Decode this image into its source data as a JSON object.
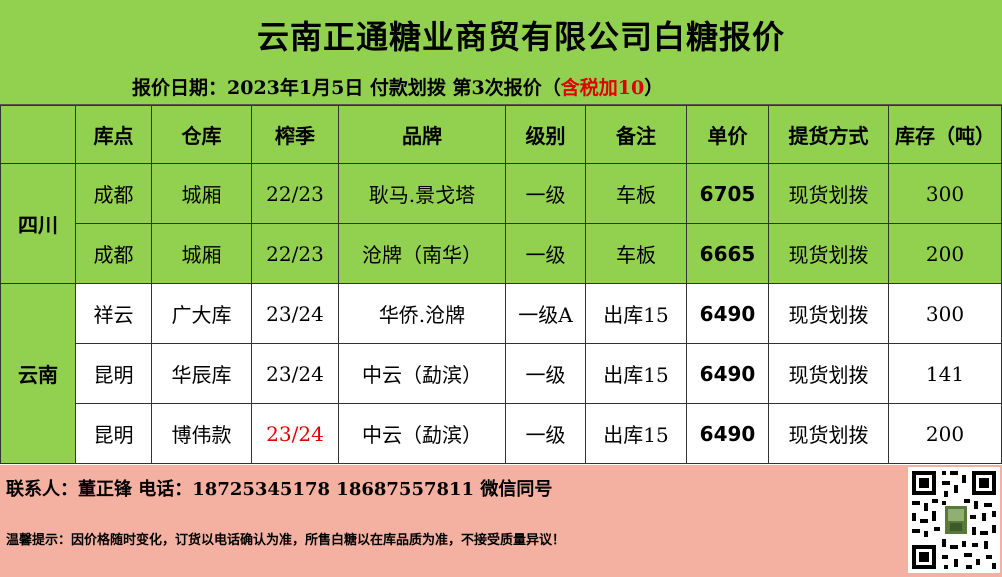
{
  "title": "云南正通糖业商贸有限公司白糖报价",
  "quote_line": {
    "prefix": "报价日期：2023年1月5日 付款划拨 第3次报价（",
    "red": "含税加10",
    "suffix": "）"
  },
  "table": {
    "headers": [
      "库点",
      "仓库",
      "榨季",
      "品牌",
      "级别",
      "备注",
      "单价",
      "提货方式",
      "库存（吨）"
    ],
    "groups": [
      {
        "province": "四川"
      },
      {
        "province": "云南"
      }
    ],
    "rows": [
      {
        "depot": "成都",
        "warehouse": "城厢",
        "season": "22/23",
        "brand": "耿马.景戈塔",
        "grade": "一级",
        "note": "车板",
        "price": "6705",
        "delivery": "现货划拨",
        "stock": "300"
      },
      {
        "depot": "成都",
        "warehouse": "城厢",
        "season": "22/23",
        "brand": "沧牌（南华）",
        "grade": "一级",
        "note": "车板",
        "price": "6665",
        "delivery": "现货划拨",
        "stock": "200"
      },
      {
        "depot": "祥云",
        "warehouse": "广大库",
        "season": "23/24",
        "brand": "华侨.沧牌",
        "grade": "一级A",
        "note": "出库15",
        "price": "6490",
        "delivery": "现货划拨",
        "stock": "300"
      },
      {
        "depot": "昆明",
        "warehouse": "华辰库",
        "season": "23/24",
        "brand": "中云（勐滨）",
        "grade": "一级",
        "note": "出库15",
        "price": "6490",
        "delivery": "现货划拨",
        "stock": "141"
      },
      {
        "depot": "昆明",
        "warehouse": "博伟款",
        "season": "23/24",
        "brand": "中云（勐滨）",
        "grade": "一级",
        "note": "出库15",
        "price": "6490",
        "delivery": "现货划拨",
        "stock": "200"
      }
    ]
  },
  "footer": {
    "contact": "联系人：董正锋  电话：18725345178 18687557811 微信同号",
    "tip": "温馨提示：因价格随时变化，订货以电话确认为准，所售白糖以在库品质为准，不接受质量异议！"
  },
  "colors": {
    "green": "#92d050",
    "salmon": "#f4b0a0",
    "red": "#e00000"
  },
  "icons": {
    "qr": "qr-code-icon"
  }
}
